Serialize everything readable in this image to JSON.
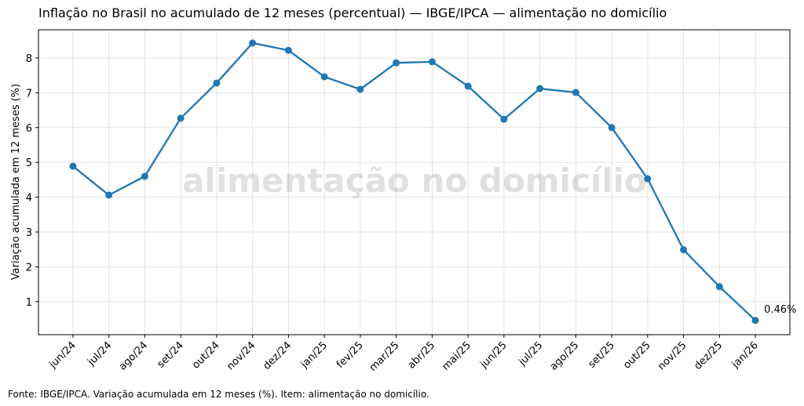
{
  "chart_data": {
    "type": "line",
    "title": "Inflação no Brasil no acumulado de 12 meses (percentual) — IBGE/IPCA — alimentação no domicílio",
    "xlabel": "",
    "ylabel": "Variação acumulada em 12 meses (%)",
    "categories": [
      "jun/24",
      "jul/24",
      "ago/24",
      "set/24",
      "out/24",
      "nov/24",
      "dez/24",
      "jan/25",
      "fev/25",
      "mar/25",
      "abr/25",
      "mai/25",
      "jun/25",
      "jul/25",
      "ago/25",
      "set/25",
      "out/25",
      "nov/25",
      "dez/25",
      "jan/26"
    ],
    "series": [
      {
        "name": "alimentação no domicílio",
        "color": "#1f77b4",
        "values": [
          4.89,
          4.06,
          4.6,
          6.27,
          7.28,
          8.43,
          8.22,
          7.46,
          7.1,
          7.86,
          7.89,
          7.19,
          6.24,
          7.12,
          7.01,
          6.0,
          4.53,
          2.49,
          1.43,
          0.46
        ]
      }
    ],
    "ylim": [
      0.05,
      8.81
    ],
    "yticks": [
      1,
      2,
      3,
      4,
      5,
      6,
      7,
      8
    ],
    "grid": true,
    "last_label": "0.46%",
    "watermark": "alimentação no domicílio"
  },
  "footer": "Fonte: IBGE/IPCA. Variação acumulada em 12 meses (%). Item: alimentação no domicílio."
}
